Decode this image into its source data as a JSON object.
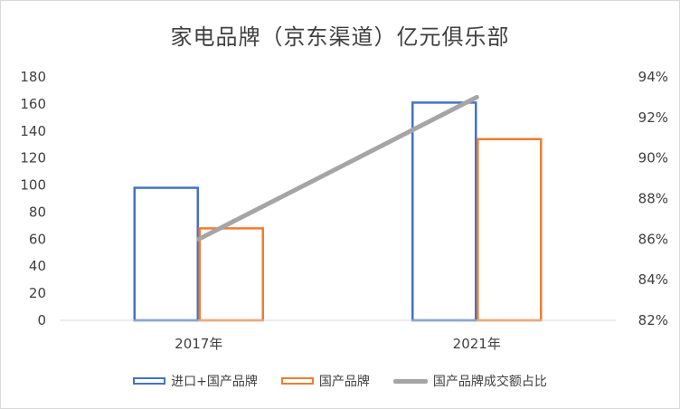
{
  "chart_data": {
    "type": "bar",
    "title": "家电品牌（京东渠道）亿元俱乐部",
    "categories": [
      "2017年",
      "2021年"
    ],
    "series": [
      {
        "name": "进口+国产品牌",
        "type": "bar",
        "axis": "left",
        "values": [
          98,
          161
        ],
        "color": "#4472C4"
      },
      {
        "name": "国产品牌",
        "type": "bar",
        "axis": "left",
        "values": [
          68,
          134
        ],
        "color": "#ED7D31"
      },
      {
        "name": "国产品牌成交额占比",
        "type": "line",
        "axis": "right",
        "values": [
          86,
          93
        ],
        "color": "#A5A5A5"
      }
    ],
    "y_left": {
      "min": 0,
      "max": 180,
      "step": 20,
      "ticks": [
        "0",
        "20",
        "40",
        "60",
        "80",
        "100",
        "120",
        "140",
        "160",
        "180"
      ]
    },
    "y_right": {
      "min": 82,
      "max": 94,
      "step": 2,
      "ticks": [
        "82%",
        "84%",
        "86%",
        "88%",
        "90%",
        "92%",
        "94%"
      ]
    },
    "legend_position": "bottom",
    "grid": false
  }
}
